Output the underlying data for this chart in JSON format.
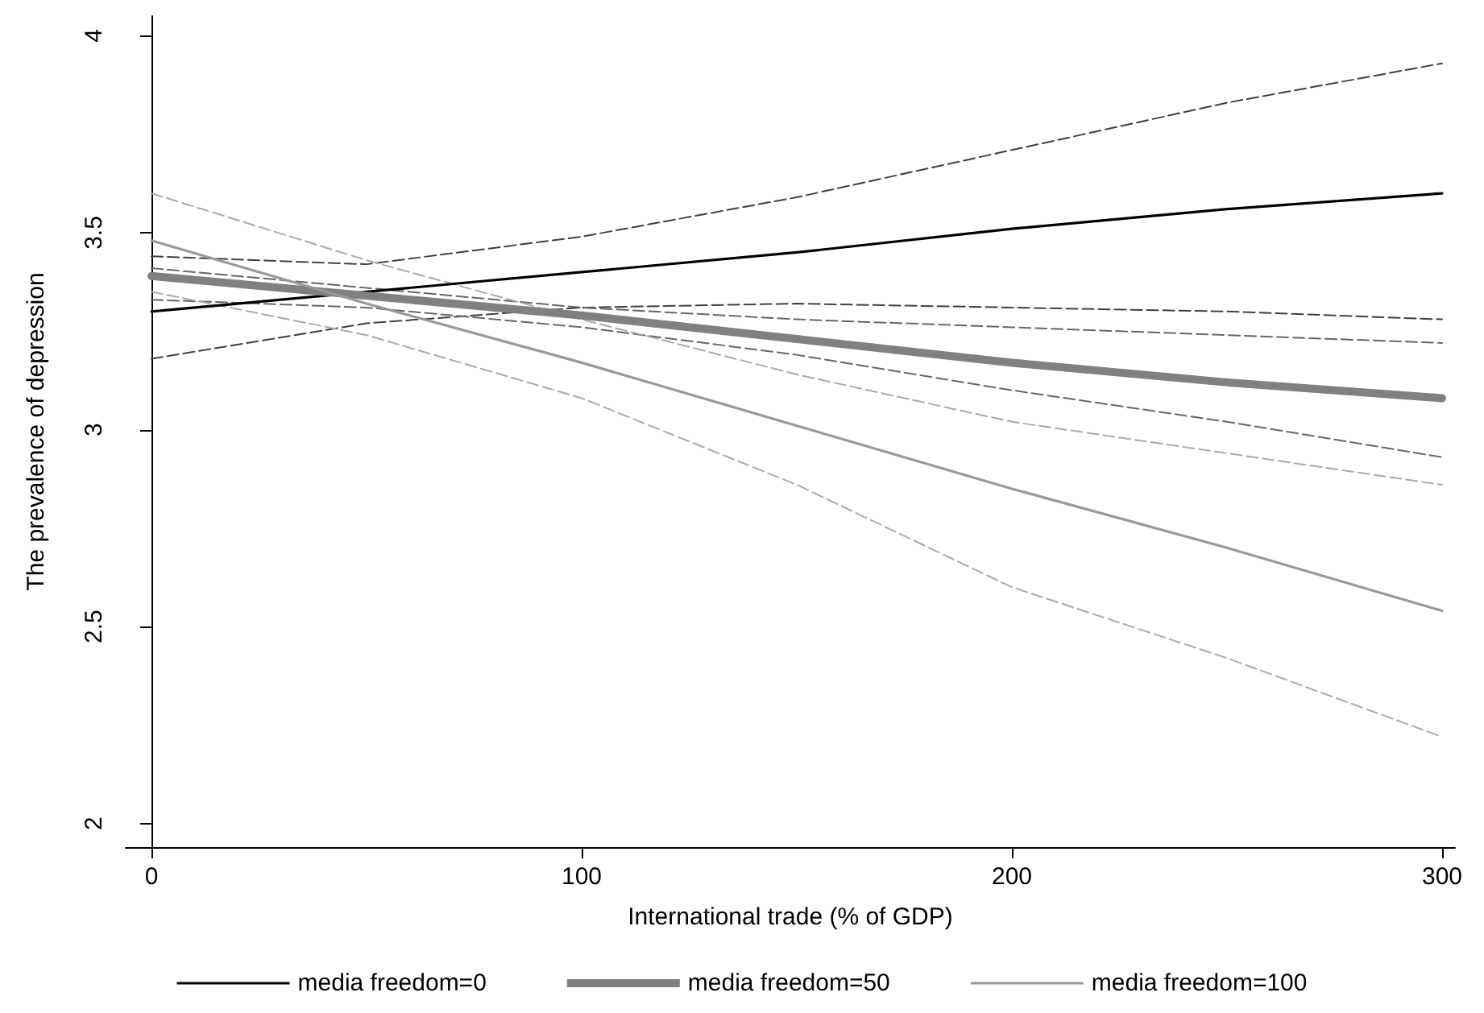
{
  "chart_data": {
    "type": "line",
    "xlabel": "International trade (% of GDP)",
    "ylabel": "The prevalence of depression",
    "x": [
      0,
      50,
      100,
      150,
      200,
      250,
      300
    ],
    "series": [
      {
        "name": "media freedom=0",
        "color": "#000000",
        "values": [
          3.3,
          3.35,
          3.4,
          3.45,
          3.51,
          3.56,
          3.6
        ]
      },
      {
        "name": "media freedom=50",
        "color": "#808080",
        "values": [
          3.39,
          3.34,
          3.29,
          3.23,
          3.17,
          3.12,
          3.08
        ]
      },
      {
        "name": "media freedom=100",
        "color": "#999999",
        "values": [
          3.48,
          3.32,
          3.17,
          3.01,
          2.85,
          2.7,
          2.54
        ]
      },
      {
        "color": "#404040",
        "line_style": "dashed",
        "values": [
          3.44,
          3.42,
          3.49,
          3.59,
          3.71,
          3.83,
          3.93
        ]
      },
      {
        "color": "#404040",
        "line_style": "dashed",
        "values": [
          3.18,
          3.27,
          3.31,
          3.32,
          3.31,
          3.3,
          3.28
        ]
      },
      {
        "color": "#666666",
        "line_style": "dashed",
        "values": [
          3.41,
          3.36,
          3.31,
          3.28,
          3.26,
          3.24,
          3.22
        ]
      },
      {
        "color": "#666666",
        "line_style": "dashed",
        "values": [
          3.33,
          3.31,
          3.26,
          3.19,
          3.1,
          3.02,
          2.93
        ]
      },
      {
        "color": "#aaaaaa",
        "line_style": "dashed",
        "values": [
          3.6,
          3.43,
          3.28,
          3.14,
          3.02,
          2.94,
          2.86
        ]
      },
      {
        "color": "#aaaaaa",
        "line_style": "dashed",
        "values": [
          3.35,
          3.24,
          3.08,
          2.86,
          2.6,
          2.42,
          2.22
        ]
      }
    ],
    "xlim": [
      -6,
      303
    ],
    "xticks": [
      0,
      100,
      200,
      300
    ],
    "ylim": [
      1.94,
      4.05
    ],
    "yticks": [
      2,
      2.5,
      3,
      3.5,
      4
    ],
    "grid": false,
    "legend": "bottom",
    "marker": "none",
    "line_style": "solid"
  }
}
